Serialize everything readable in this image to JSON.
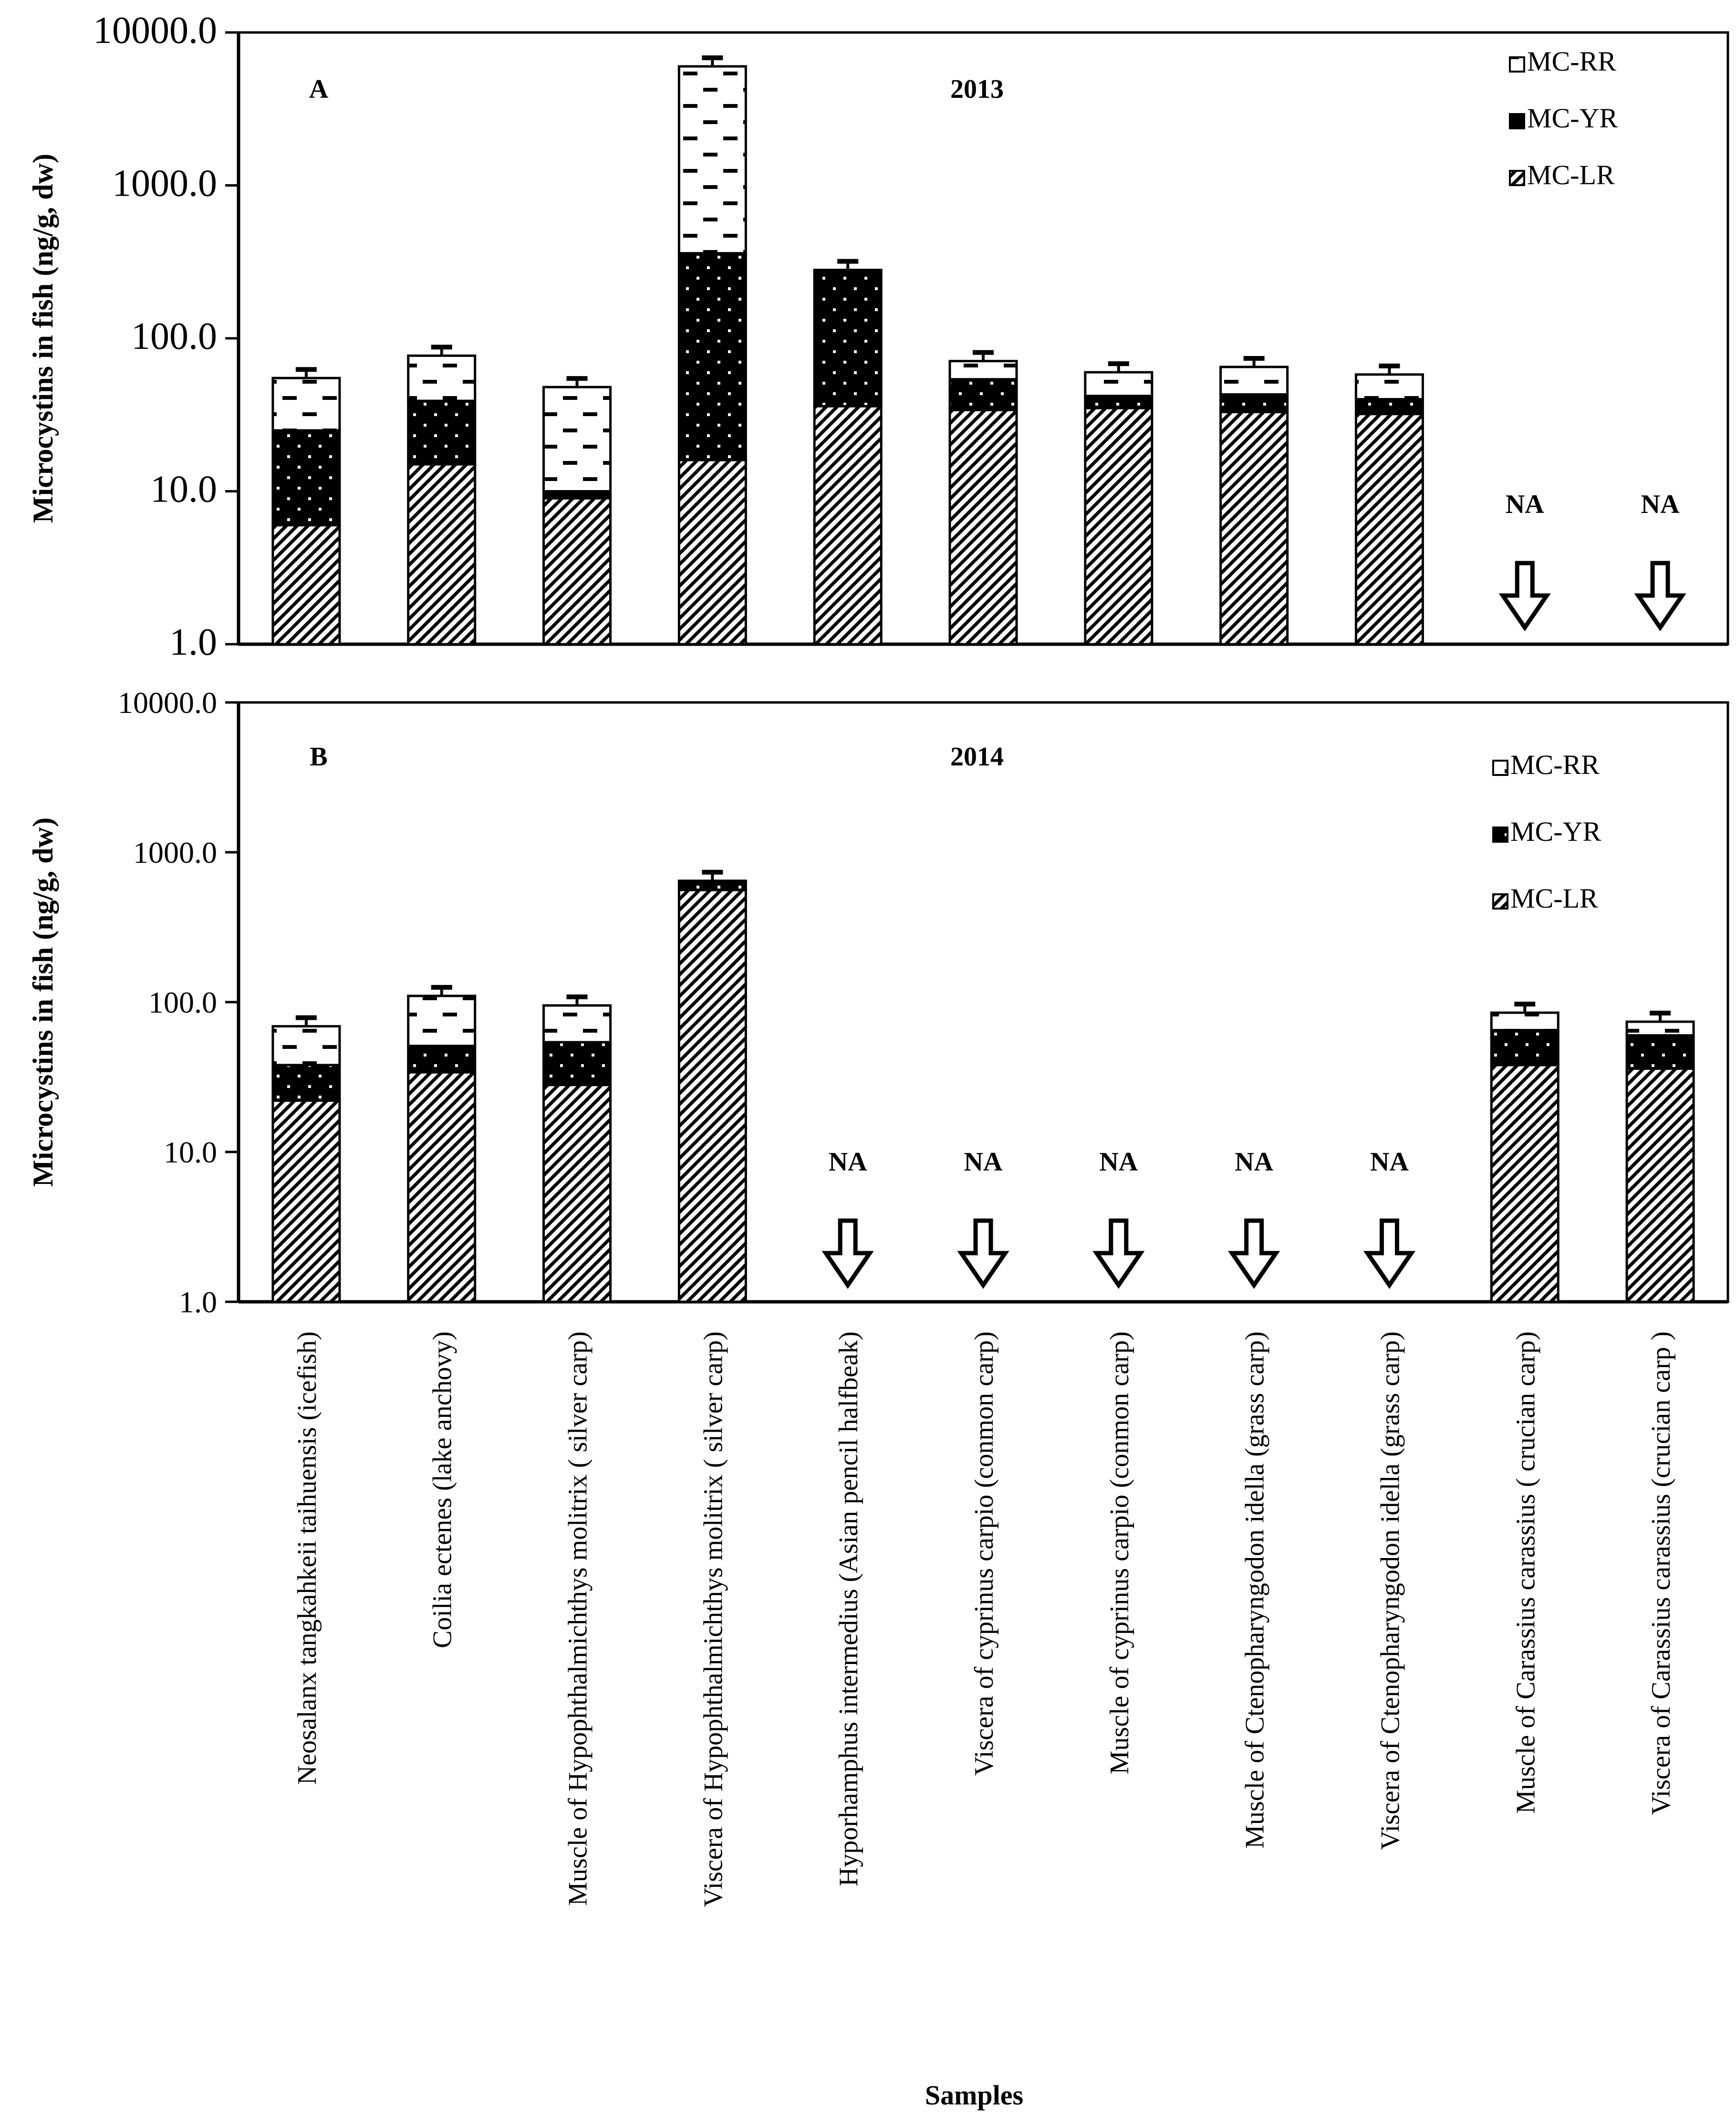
{
  "chart_data": [
    {
      "type": "bar",
      "stacked": true,
      "y_scale": "log",
      "panel": "A",
      "title": "2013",
      "ylabel": "Microcystins in  fish  (ng/g, dw)",
      "ylim": [
        1,
        10000
      ],
      "y_ticks": [
        "1.0",
        "10.0",
        "100.0",
        "1000.0",
        "10000.0"
      ],
      "legend": [
        "MC-RR",
        "MC-YR",
        "MC-LR"
      ],
      "legend_position": "top-right",
      "series": [
        {
          "name": "MC-LR",
          "pattern": "diagonal-hatch",
          "values": [
            6,
            15,
            9,
            16,
            36,
            34,
            35,
            33,
            32,
            null,
            null
          ]
        },
        {
          "name": "MC-YR",
          "pattern": "black-dotted",
          "values": [
            19,
            24,
            1,
            344,
            239,
            20,
            7,
            10,
            8,
            null,
            null
          ]
        },
        {
          "name": "MC-RR",
          "pattern": "white-dashed",
          "values": [
            30,
            38,
            38,
            5640,
            5,
            17,
            18,
            22,
            18,
            null,
            null
          ]
        }
      ],
      "totals": [
        55,
        77,
        48,
        6000,
        280,
        71,
        60,
        65,
        58,
        null,
        null
      ],
      "na_label": "NA"
    },
    {
      "type": "bar",
      "stacked": true,
      "y_scale": "log",
      "panel": "B",
      "title": "2014",
      "ylabel": "Microcystins in  fish  (ng/g, dw)",
      "xlabel": "Samples",
      "ylim": [
        1,
        10000
      ],
      "y_ticks": [
        "1.0",
        "10.0",
        "100.0",
        "1000.0",
        "10000.0"
      ],
      "legend": [
        "MC-RR",
        "MC-YR",
        "MC-LR"
      ],
      "legend_position": "top-right",
      "categories": [
        "Neosalanx tangkahkeii taihuensis (icefish)",
        "Coilia ectenes (lake anchovy)",
        "Muscle of Hypophthalmichthys molitrix ( silver carp)",
        "Viscera of  Hypophthalmichthys molitrix ( silver carp)",
        "Hyporhamphus intermedius (Asian pencil halfbeak)",
        "Viscera of cyprinus carpio (conmon carp)",
        "Muscle  of  cyprinus carpio (conmon carp)",
        "Muscle of Ctenopharyngodon idella (grass carp)",
        "Viscera of Ctenopharyngodon idella (grass carp)",
        "Muscle  of Carassius carassius ( crucian carp)",
        "Viscera of Carassius carassius (crucian carp )"
      ],
      "series": [
        {
          "name": "MC-LR",
          "pattern": "diagonal-hatch",
          "values": [
            22,
            34,
            28,
            560,
            null,
            null,
            null,
            null,
            null,
            38,
            36
          ]
        },
        {
          "name": "MC-YR",
          "pattern": "black-dotted",
          "values": [
            16,
            17,
            26,
            75,
            null,
            null,
            null,
            null,
            null,
            27,
            24
          ]
        },
        {
          "name": "MC-RR",
          "pattern": "white-dashed",
          "values": [
            31,
            59,
            41,
            10,
            null,
            null,
            null,
            null,
            null,
            20,
            14
          ]
        }
      ],
      "totals": [
        69,
        110,
        95,
        645,
        null,
        null,
        null,
        null,
        null,
        85,
        74
      ],
      "na_label": "NA"
    }
  ]
}
